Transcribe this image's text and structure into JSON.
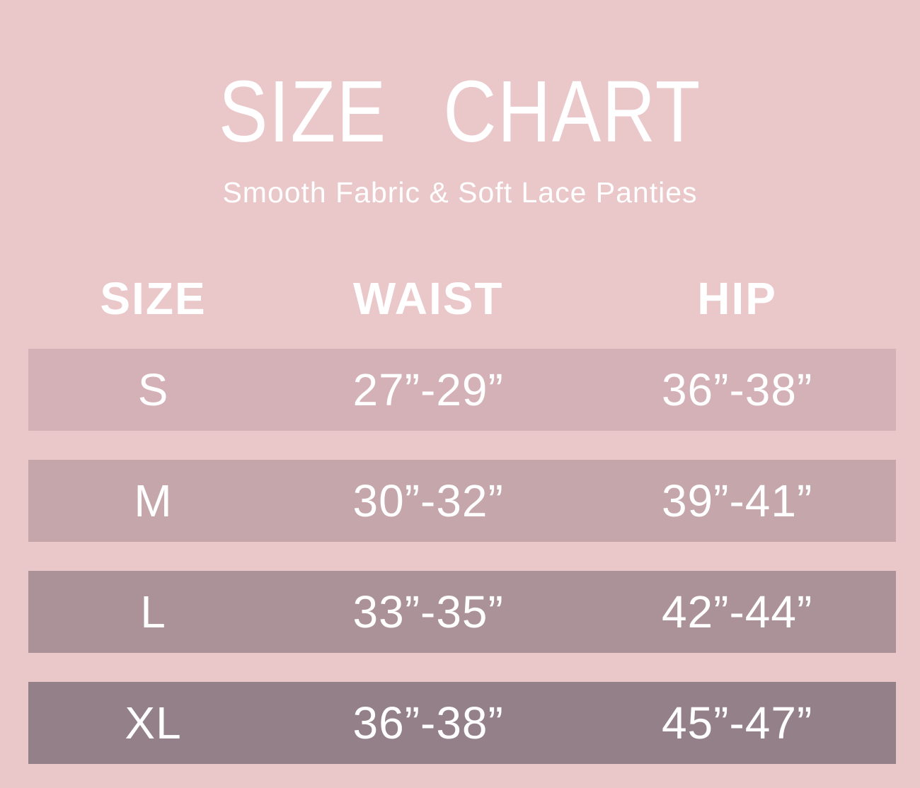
{
  "page": {
    "background": "#eac7c9",
    "text_color": "#ffffff"
  },
  "header": {
    "title": "SIZE CHART",
    "subtitle": "Smooth Fabric & Soft Lace Panties"
  },
  "style": {
    "row_backgrounds": [
      "#d3b1b6",
      "#c4a6ab",
      "#ab9298",
      "#948089"
    ]
  },
  "chart_data": {
    "type": "table",
    "title": "SIZE CHART",
    "subtitle": "Smooth Fabric & Soft Lace Panties",
    "columns": [
      "SIZE",
      "WAIST",
      "HIP"
    ],
    "rows": [
      [
        "S",
        "27”-29”",
        "36”-38”"
      ],
      [
        "M",
        "30”-32”",
        "39”-41”"
      ],
      [
        "L",
        "33”-35”",
        "42”-44”"
      ],
      [
        "XL",
        "36”-38”",
        "45”-47”"
      ]
    ],
    "layout": {
      "legend": "none",
      "grid": "off",
      "row_shading": "progressively darker mauve from S to XL"
    }
  }
}
